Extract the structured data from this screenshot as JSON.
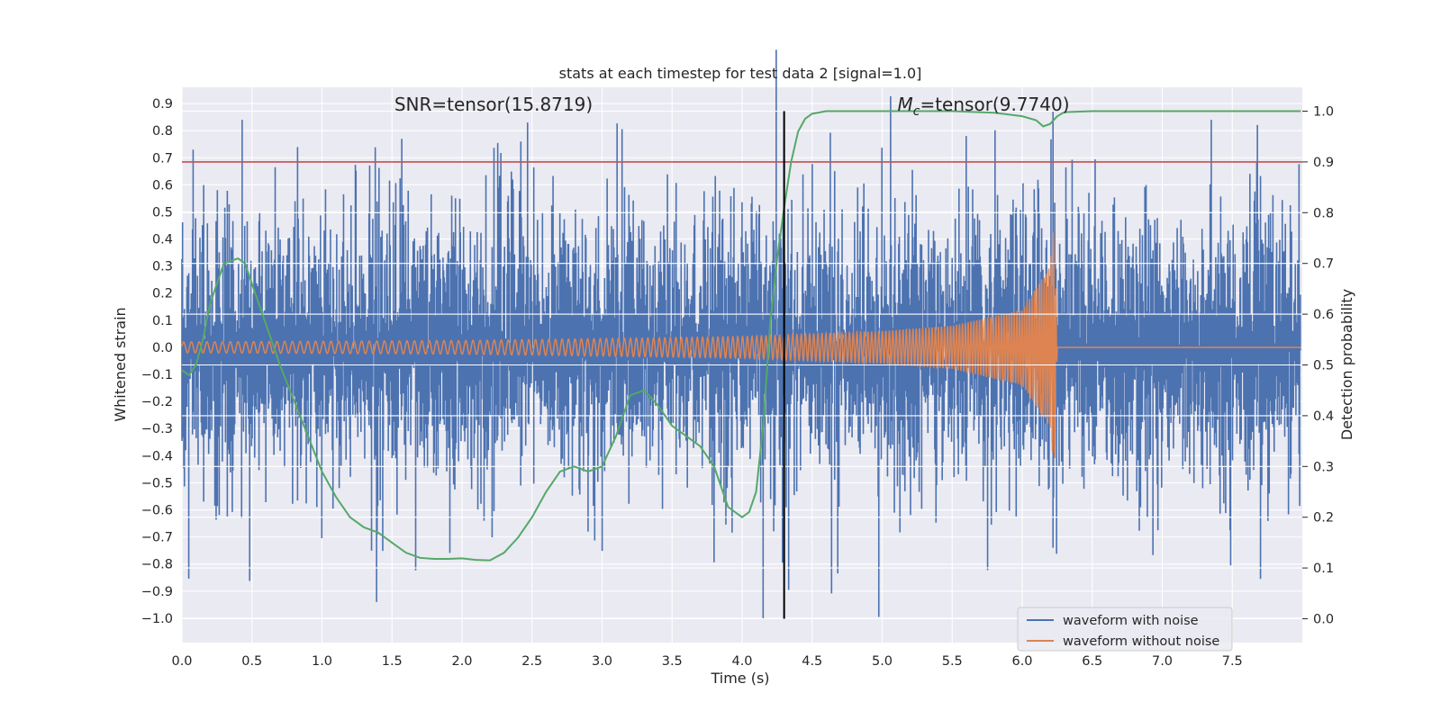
{
  "chart_data": {
    "type": "line",
    "title": "stats at each timestep for test data 2 [signal=1.0]",
    "xlabel": "Time (s)",
    "ylabel": "Whitened strain",
    "y2label": "Detection probability",
    "xlim": [
      0.0,
      8.0
    ],
    "ylim": [
      -1.09,
      0.96
    ],
    "y2lim": [
      -0.047,
      1.047
    ],
    "xticks": [
      "0.0",
      "0.5",
      "1.0",
      "1.5",
      "2.0",
      "2.5",
      "3.0",
      "3.5",
      "4.0",
      "4.5",
      "5.0",
      "5.5",
      "6.0",
      "6.5",
      "7.0",
      "7.5"
    ],
    "yticks": [
      "0.9",
      "0.8",
      "0.7",
      "0.6",
      "0.5",
      "0.4",
      "0.3",
      "0.2",
      "0.1",
      "0.0",
      "−0.1",
      "−0.2",
      "−0.3",
      "−0.4",
      "−0.5",
      "−0.6",
      "−0.7",
      "−0.8",
      "−0.9",
      "−1.0"
    ],
    "y2ticks": [
      "1.0",
      "0.9",
      "0.8",
      "0.7",
      "0.6",
      "0.5",
      "0.4",
      "0.3",
      "0.2",
      "0.1",
      "0.0"
    ],
    "grid": true,
    "legend_position": "bottom-right",
    "annotations": {
      "snr": "SNR=tensor(15.8719)",
      "mc_prefix": "M",
      "mc_sub": "c",
      "mc_rest": "=tensor(9.7740)"
    },
    "threshold_line": {
      "y2": 0.9,
      "color": "#c44e52"
    },
    "merger_line": {
      "x": 4.3,
      "color": "#000000"
    },
    "colors": {
      "noisy": "#4c72b0",
      "clean": "#dd8452",
      "probability": "#55a868",
      "background": "#eaeaf2",
      "grid": "#ffffff"
    },
    "series": [
      {
        "name": "waveform with noise",
        "description_envelope": {
          "x": [
            0.0,
            1.0,
            2.0,
            3.0,
            4.0,
            4.15,
            4.3,
            5.0,
            6.0,
            6.2,
            7.0,
            7.99
          ],
          "typical_amplitude": 0.3,
          "spikes_up": [
            [
              0.08,
              0.73
            ],
            [
              0.43,
              0.84
            ],
            [
              1.57,
              0.77
            ],
            [
              2.42,
              0.76
            ],
            [
              4.3,
              0.76
            ],
            [
              5.6,
              0.78
            ],
            [
              6.22,
              0.87
            ],
            [
              7.35,
              0.84
            ]
          ],
          "spikes_down": [
            [
              1.39,
              -0.94
            ],
            [
              4.15,
              -1.0
            ],
            [
              6.22,
              -0.74
            ],
            [
              2.9,
              -0.68
            ]
          ]
        }
      },
      {
        "name": "waveform without noise",
        "envelope_amplitude": {
          "x": [
            0.0,
            2.0,
            4.0,
            5.0,
            5.5,
            6.0,
            6.2,
            6.23,
            6.25,
            7.99
          ],
          "amp": [
            0.02,
            0.025,
            0.04,
            0.06,
            0.08,
            0.14,
            0.3,
            0.46,
            0.0,
            0.0
          ]
        },
        "start_frequency_hz": 18,
        "end_frequency_hz": 60,
        "merger_time": 6.23
      },
      {
        "name": "Detection probability",
        "axis": "y2",
        "x": [
          0.0,
          0.05,
          0.1,
          0.15,
          0.2,
          0.3,
          0.4,
          0.45,
          0.5,
          0.6,
          0.7,
          0.8,
          0.9,
          1.0,
          1.1,
          1.2,
          1.3,
          1.4,
          1.5,
          1.6,
          1.7,
          1.8,
          1.9,
          2.0,
          2.1,
          2.2,
          2.3,
          2.4,
          2.5,
          2.6,
          2.7,
          2.8,
          2.9,
          3.0,
          3.1,
          3.2,
          3.3,
          3.4,
          3.5,
          3.6,
          3.7,
          3.8,
          3.9,
          4.0,
          4.05,
          4.1,
          4.15,
          4.2,
          4.25,
          4.3,
          4.35,
          4.4,
          4.45,
          4.5,
          4.6,
          5.0,
          5.5,
          5.8,
          6.0,
          6.1,
          6.15,
          6.2,
          6.25,
          6.3,
          6.5,
          7.0,
          7.5,
          8.0
        ],
        "values": [
          0.49,
          0.48,
          0.5,
          0.55,
          0.62,
          0.7,
          0.71,
          0.7,
          0.66,
          0.58,
          0.5,
          0.43,
          0.36,
          0.29,
          0.24,
          0.2,
          0.18,
          0.17,
          0.15,
          0.13,
          0.12,
          0.118,
          0.118,
          0.119,
          0.116,
          0.115,
          0.13,
          0.16,
          0.2,
          0.25,
          0.29,
          0.3,
          0.29,
          0.3,
          0.36,
          0.44,
          0.45,
          0.42,
          0.38,
          0.36,
          0.34,
          0.3,
          0.22,
          0.2,
          0.21,
          0.25,
          0.38,
          0.58,
          0.71,
          0.81,
          0.9,
          0.96,
          0.985,
          0.995,
          1.0,
          1.0,
          1.0,
          0.997,
          0.99,
          0.982,
          0.97,
          0.975,
          0.99,
          0.998,
          1.0,
          1.0,
          1.0,
          1.0
        ]
      }
    ]
  }
}
